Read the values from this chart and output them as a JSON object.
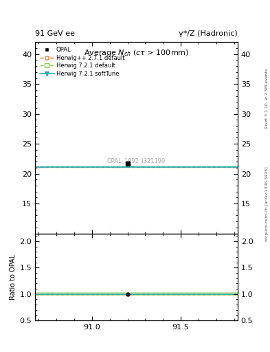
{
  "title_top_left": "91 GeV ee",
  "title_top_right": "γ*/Z (Hadronic)",
  "main_title": "Average $N_{ch}$ ($c\\tau$ > 100mm)",
  "watermark": "OPAL_1992_I321190",
  "right_label_top": "Rivet 3.1.10, ≥ 2.5M events",
  "right_label_bottom": "mcplots.cern.ch [arXiv:1306.3436]",
  "xlim": [
    90.68,
    91.82
  ],
  "xticks": [
    91.0,
    91.5
  ],
  "ylim_main": [
    10.0,
    42.0
  ],
  "yticks_main": [
    15,
    20,
    25,
    30,
    35,
    40
  ],
  "ylim_ratio": [
    0.5,
    2.15
  ],
  "yticks_ratio": [
    0.5,
    1.0,
    1.5,
    2.0
  ],
  "data_x": 91.2,
  "data_y": 21.7,
  "data_yerr": 0.3,
  "data_label": "OPAL",
  "data_color": "#000000",
  "herwig1_y": 21.1,
  "herwig1_label": "Herwig++ 2.7.1 default",
  "herwig1_color": "#e07820",
  "herwig1_linestyle": "--",
  "herwig2_y": 21.2,
  "herwig2_label": "Herwig 7.2.1 default",
  "herwig2_color": "#88cc44",
  "herwig2_linestyle": "--",
  "herwig3_y": 21.15,
  "herwig3_label": "Herwig 7.2.1 softTune",
  "herwig3_color": "#20a8b8",
  "herwig3_linestyle": "-",
  "ratio_band_low": 0.97,
  "ratio_band_high": 1.03,
  "ratio_data_y": 1.0,
  "ratio_data_yerr": 0.013,
  "ylabel_ratio": "Ratio to OPAL",
  "bg_color": "white"
}
